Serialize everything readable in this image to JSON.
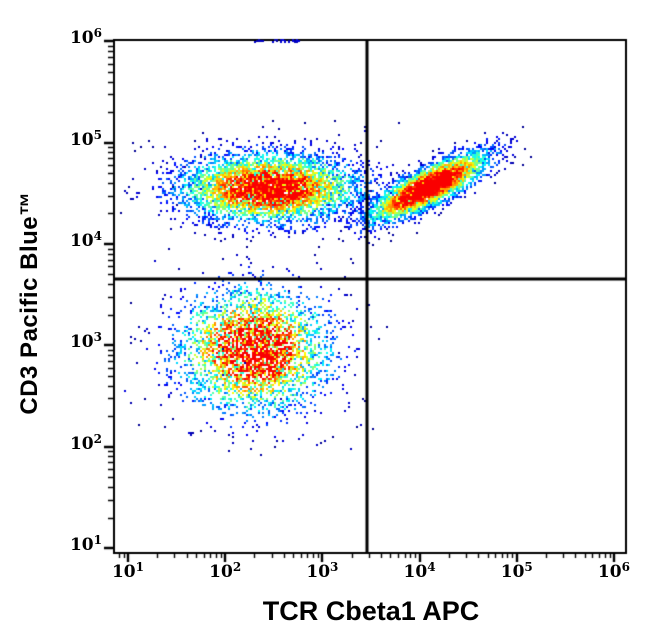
{
  "chart_data": {
    "type": "scatter",
    "subtype": "flow-cytometry-pseudocolor-density-dot-plot",
    "title": "",
    "xlabel": "TCR Cbeta1 APC",
    "ylabel": "CD3 Pacific Blue™",
    "x_scale": "log10",
    "y_scale": "log10",
    "x_axis_ticks": [
      {
        "base": "10",
        "exp": "1",
        "log": 1
      },
      {
        "base": "10",
        "exp": "2",
        "log": 2
      },
      {
        "base": "10",
        "exp": "3",
        "log": 3
      },
      {
        "base": "10",
        "exp": "4",
        "log": 4
      },
      {
        "base": "10",
        "exp": "5",
        "log": 5
      },
      {
        "base": "10",
        "exp": "6",
        "log": 6
      }
    ],
    "y_axis_ticks": [
      {
        "base": "10",
        "exp": "1",
        "log": 1
      },
      {
        "base": "10",
        "exp": "2",
        "log": 2
      },
      {
        "base": "10",
        "exp": "3",
        "log": 3
      },
      {
        "base": "10",
        "exp": "4",
        "log": 4
      },
      {
        "base": "10",
        "exp": "5",
        "log": 5
      },
      {
        "base": "10",
        "exp": "6",
        "log": 6
      }
    ],
    "x_range_log": [
      0.856,
      6.124
    ],
    "y_range_log": [
      0.951,
      6.012
    ],
    "quadrant_gate_log": {
      "x": 3.46,
      "y": 3.65
    },
    "colormap": "jet (dark blue = low event density, red = high event density)",
    "populations": [
      {
        "name": "CD3+ TCR-Cbeta1- (upper-left quadrant)",
        "n": 5200,
        "center_log": [
          2.45,
          4.56
        ],
        "sigma_log": [
          0.46,
          0.17
        ],
        "tilt": 0.0,
        "peak": 0.92
      },
      {
        "name": "CD3+ TCR-Cbeta1+ (upper-right quadrant)",
        "n": 4200,
        "center_log": [
          4.08,
          4.57
        ],
        "sigma_log": [
          0.34,
          0.09
        ],
        "tilt": 0.5,
        "peak": 1.0
      },
      {
        "name": "CD3- TCR-Cbeta1- (lower-left quadrant)",
        "n": 3600,
        "center_log": [
          2.29,
          2.97
        ],
        "sigma_log": [
          0.38,
          0.3
        ],
        "tilt": 0.0,
        "peak": 1.0
      }
    ],
    "background_events": [
      {
        "box_log": [
          1.2,
          3.44,
          3.7,
          5.15
        ],
        "n": 35
      },
      {
        "box_log": [
          0.95,
          3.4,
          1.95,
          3.6
        ],
        "n": 30
      }
    ],
    "top_edge_clipped_events": {
      "x_log_range": [
        2.27,
        2.77
      ],
      "n": 30
    },
    "stray_points_log": [
      [
        3.66,
        3.19
      ],
      [
        3.77,
        5.2
      ],
      [
        1.05,
        5.01
      ],
      [
        3.3,
        3.82
      ]
    ]
  },
  "colors": {
    "axis": "#000000",
    "gate_line": "#000000",
    "background": "#ffffff",
    "lowest_density": "#000080"
  }
}
